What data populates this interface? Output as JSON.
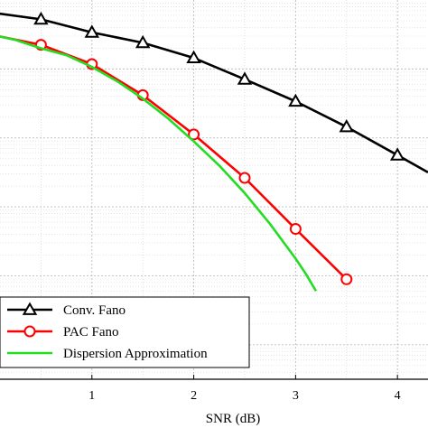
{
  "chart_data": {
    "type": "line",
    "xlabel": "SNR (dB)",
    "ylabel": "",
    "title": "",
    "xlim": [
      0,
      4.3
    ],
    "ylim_log10": [
      -5.5,
      0
    ],
    "y_scale": "log",
    "x_ticks": [
      1,
      2,
      3,
      4
    ],
    "x_tick_labels": [
      "1",
      "2",
      "3",
      "4"
    ],
    "grid": true,
    "legend_position": "bottom-left",
    "series": [
      {
        "name": "Conv. Fano",
        "color": "#000000",
        "marker": "triangle",
        "x": [
          0,
          0.5,
          1,
          1.5,
          2,
          2.5,
          3,
          3.5,
          4,
          4.3
        ],
        "log10_y": [
          -0.18,
          -0.28,
          -0.47,
          -0.62,
          -0.84,
          -1.15,
          -1.47,
          -1.84,
          -2.25,
          -2.5
        ]
      },
      {
        "name": "PAC Fano",
        "color": "#ff0000",
        "marker": "circle",
        "x": [
          0,
          0.5,
          1,
          1.5,
          2,
          2.5,
          3,
          3.5
        ],
        "log10_y": [
          -0.5,
          -0.65,
          -0.93,
          -1.38,
          -1.95,
          -2.58,
          -3.32,
          -4.05
        ]
      },
      {
        "name": "Dispersion Approximation",
        "color": "#22dd22",
        "marker": "none",
        "x": [
          0,
          0.25,
          0.5,
          0.75,
          1,
          1.25,
          1.5,
          1.75,
          2,
          2.25,
          2.5,
          2.75,
          3,
          3.1,
          3.2
        ],
        "log10_y": [
          -0.5,
          -0.58,
          -0.7,
          -0.8,
          -0.97,
          -1.18,
          -1.43,
          -1.72,
          -2.05,
          -2.4,
          -2.8,
          -3.25,
          -3.75,
          -3.97,
          -4.22
        ]
      }
    ]
  }
}
